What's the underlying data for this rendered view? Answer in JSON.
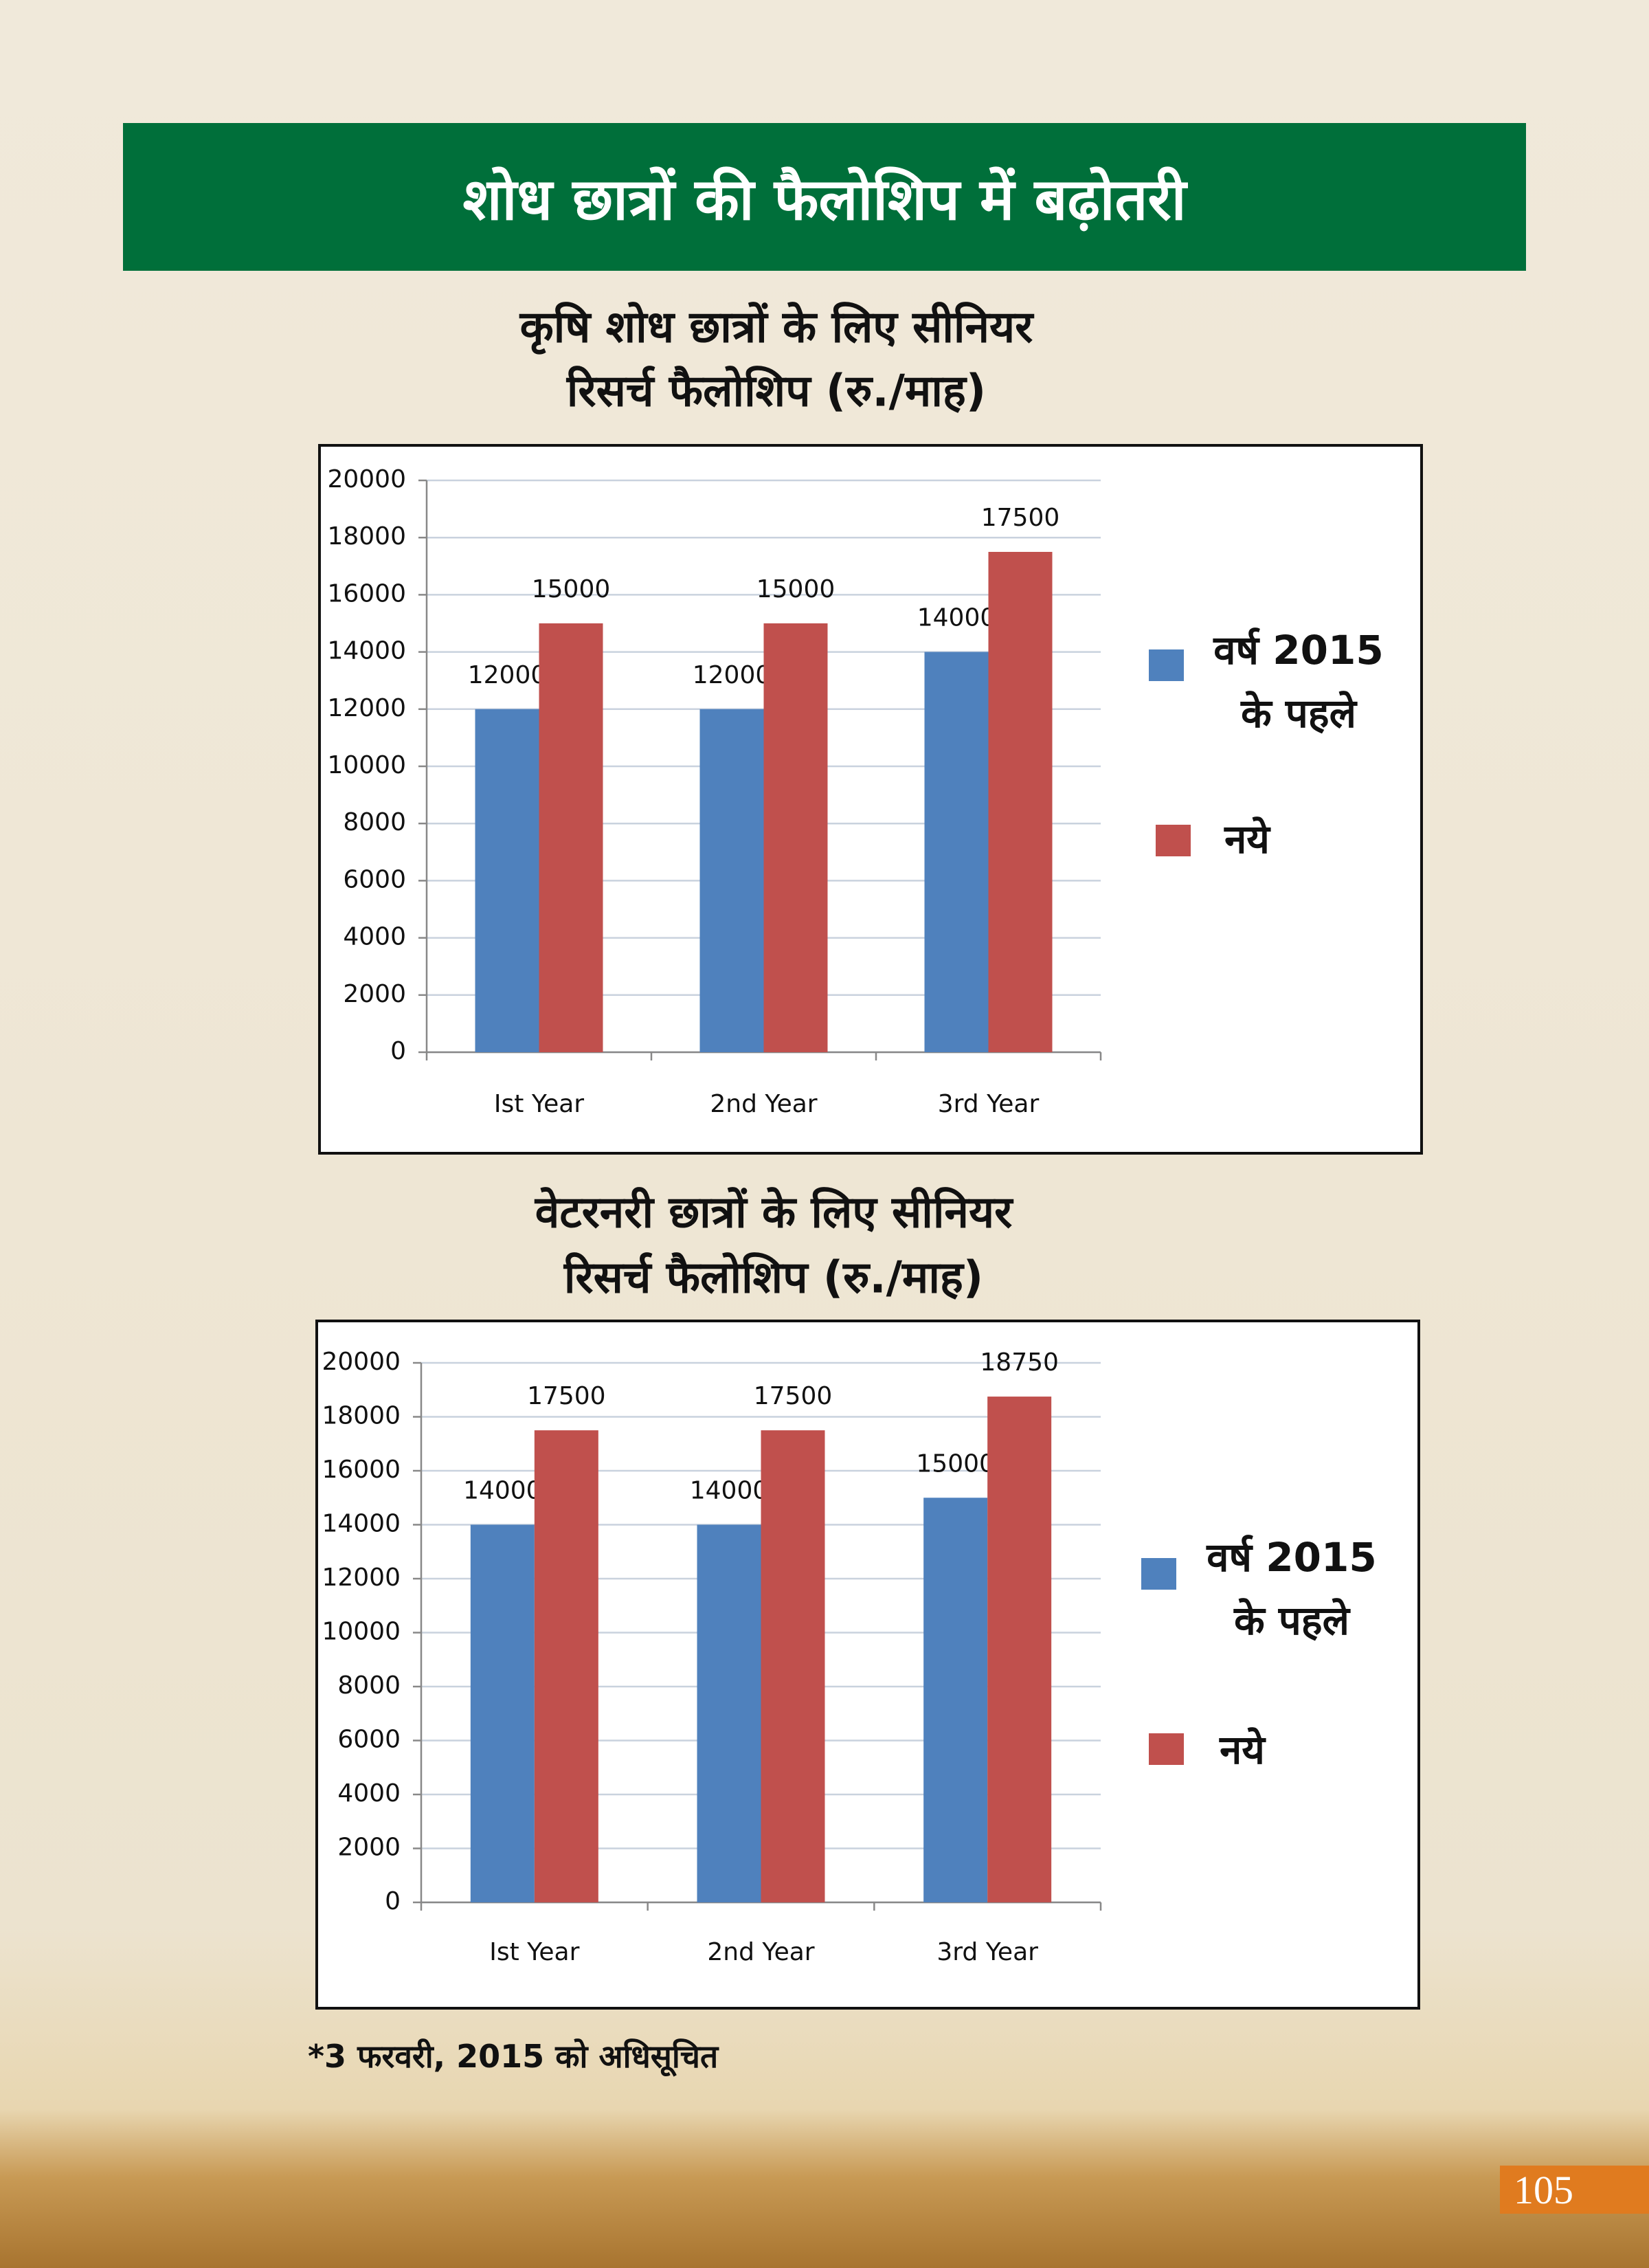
{
  "header": {
    "title": "शोध छात्रों की फैलोशिप में बढ़ोतरी"
  },
  "chart_data": [
    {
      "type": "bar",
      "title": [
        "कृषि शोध छात्रों के लिए सीनियर",
        "रिसर्च फैलोशिप (रु./माह)"
      ],
      "categories": [
        "Ist Year",
        "2nd Year",
        "3rd Year"
      ],
      "series": [
        {
          "name": "वर्ष 2015 के पहले",
          "color": "#4f81bd",
          "values": [
            12000,
            12000,
            14000
          ]
        },
        {
          "name": "नये",
          "color": "#c0504d",
          "values": [
            15000,
            15000,
            17500
          ]
        }
      ],
      "ylim": [
        0,
        20000
      ],
      "yticks": [
        0,
        2000,
        4000,
        6000,
        8000,
        10000,
        12000,
        14000,
        16000,
        18000,
        20000
      ],
      "grid": true,
      "legend": "right"
    },
    {
      "type": "bar",
      "title": [
        "वेटरनरी छात्रों के लिए सीनियर",
        "रिसर्च फैलोशिप (रु./माह)"
      ],
      "categories": [
        "Ist Year",
        "2nd Year",
        "3rd Year"
      ],
      "series": [
        {
          "name": "वर्ष 2015 के पहले",
          "color": "#4f81bd",
          "values": [
            14000,
            14000,
            15000
          ]
        },
        {
          "name": "नये",
          "color": "#c0504d",
          "values": [
            17500,
            17500,
            18750
          ]
        }
      ],
      "ylim": [
        0,
        20000
      ],
      "yticks": [
        0,
        2000,
        4000,
        6000,
        8000,
        10000,
        12000,
        14000,
        16000,
        18000,
        20000
      ],
      "grid": true,
      "legend": "right"
    }
  ],
  "footnote": "*3 फरवरी, 2015 को अधिसूचित",
  "page_number": "105"
}
